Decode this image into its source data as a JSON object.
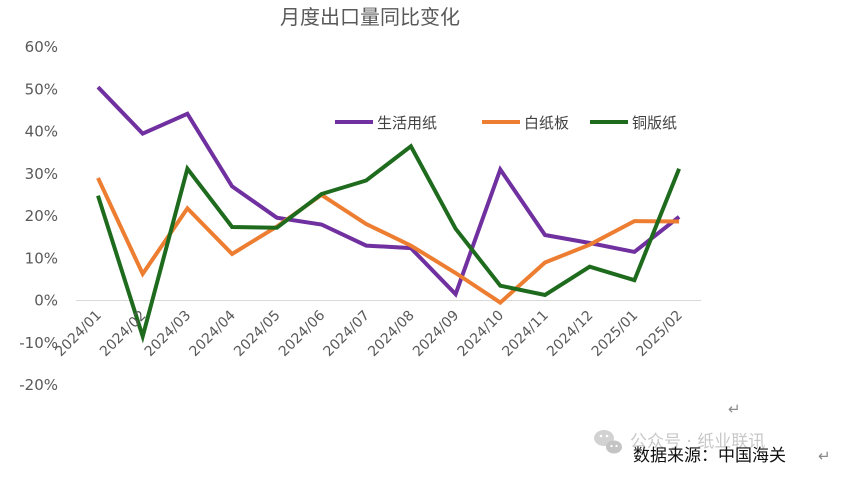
{
  "chart_data": {
    "type": "line",
    "title": "月度出口量同比变化",
    "categories": [
      "2024/01",
      "2024/02",
      "2024/03",
      "2024/04",
      "2024/05",
      "2024/06",
      "2024/07",
      "2024/08",
      "2024/09",
      "2024/10",
      "2024/11",
      "2024/12",
      "2025/01",
      "2025/02"
    ],
    "xlabel": "",
    "ylabel": "",
    "ylim": [
      -20,
      60
    ],
    "yticks": [
      "60%",
      "50%",
      "40%",
      "30%",
      "20%",
      "10%",
      "0%",
      "-10%",
      "-20%"
    ],
    "legend_position": "top-right",
    "grid": false,
    "series": [
      {
        "name": "生活用纸",
        "color": "#7030a0",
        "values": [
          50.5,
          39.5,
          44.2,
          27,
          19.6,
          18,
          13,
          12.4,
          1.5,
          31,
          15.5,
          13.6,
          11.5,
          19.8
        ]
      },
      {
        "name": "白纸板",
        "color": "#ed7d31",
        "values": [
          29,
          6.3,
          21.8,
          11,
          17.5,
          25,
          18.1,
          13,
          6.5,
          -0.5,
          9,
          13.2,
          18.8,
          18.7
        ]
      },
      {
        "name": "铜版纸",
        "color": "#1e6b1e",
        "values": [
          24.8,
          -8.5,
          31.2,
          17.4,
          17.2,
          25.2,
          28.4,
          36.5,
          17,
          3.5,
          1.3,
          8,
          4.8,
          31.2
        ]
      }
    ]
  },
  "footer": {
    "source": "数据来源：中国海关",
    "watermark": "公众号 · 纸业联讯",
    "para_marks": [
      "↵",
      "↵"
    ]
  }
}
